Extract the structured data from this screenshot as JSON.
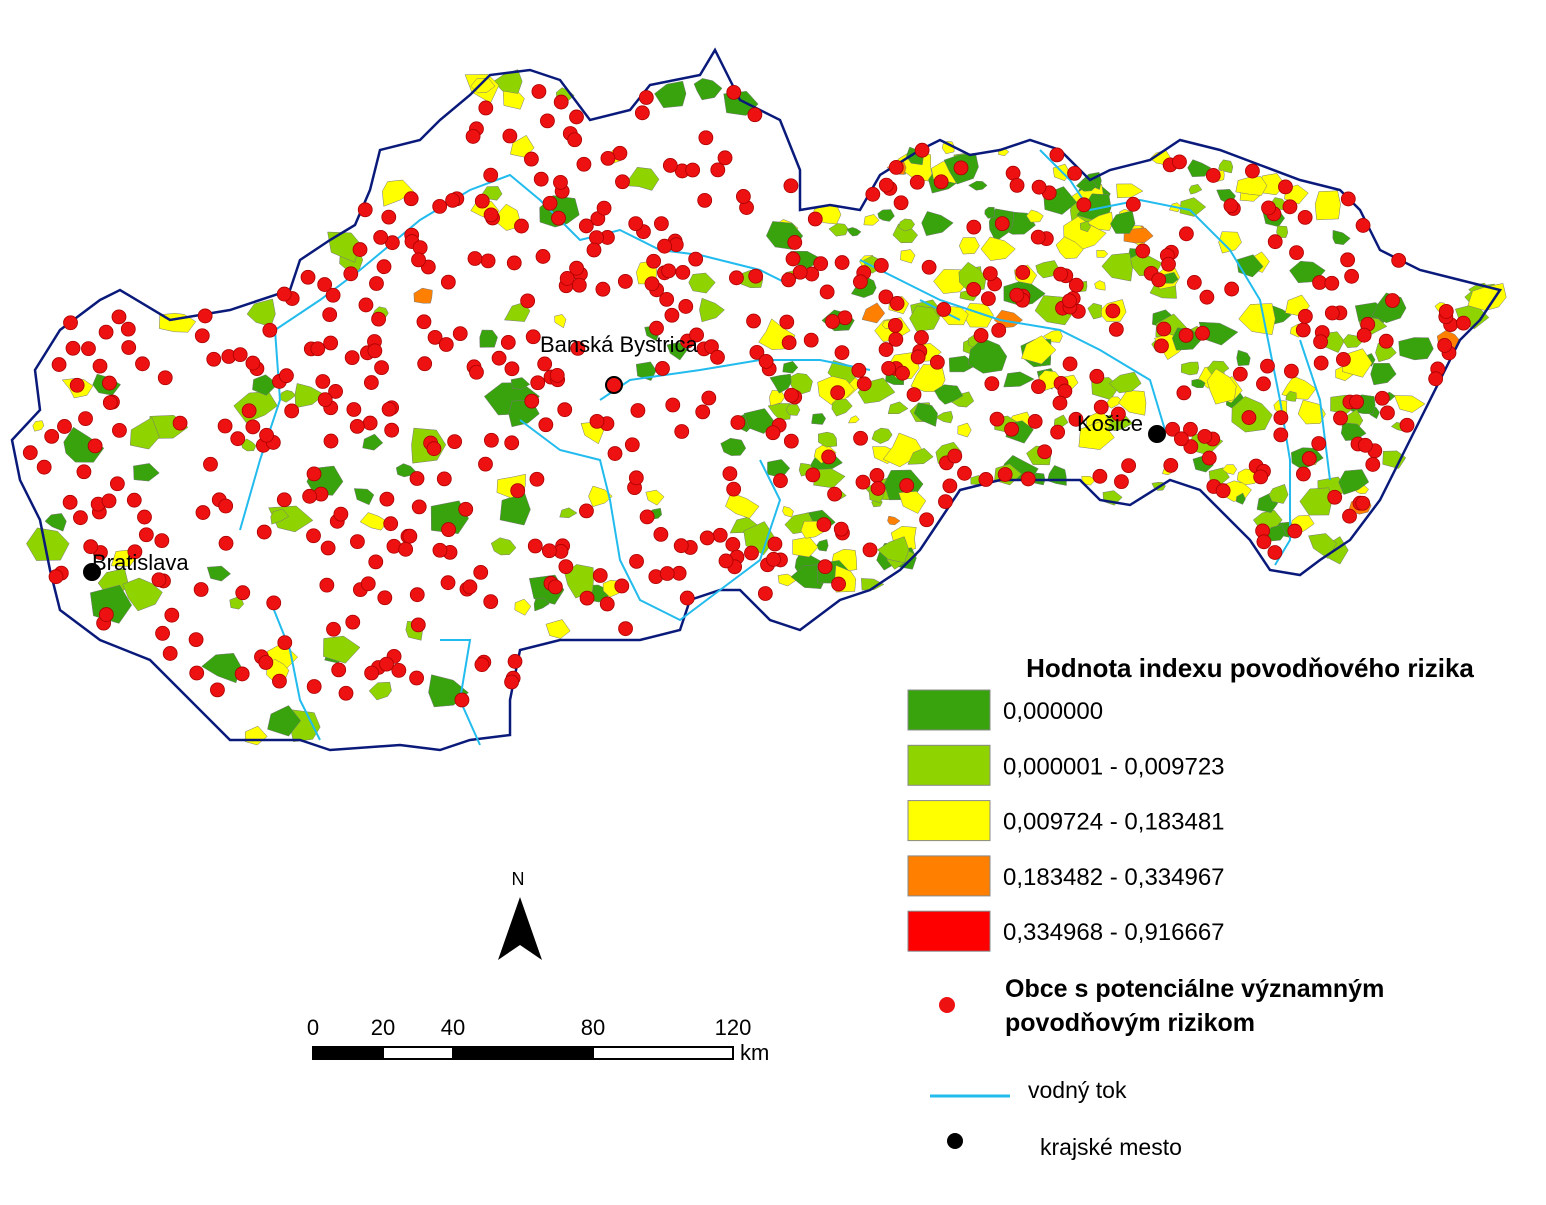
{
  "map": {
    "cities": [
      {
        "name": "Bratislava"
      },
      {
        "name": "Banská Bystrica"
      },
      {
        "name": "Košice"
      }
    ],
    "legend": {
      "title": "Hodnota indexu povodňového rizika",
      "classes": [
        {
          "label": "0,000000",
          "color": "#38a30c"
        },
        {
          "label": "0,000001 - 0,009723",
          "color": "#8fd400"
        },
        {
          "label": "0,009724 - 0,183481",
          "color": "#ffff00"
        },
        {
          "label": "0,183482 - 0,334967",
          "color": "#ff8000"
        },
        {
          "label": "0,334968 - 0,916667",
          "color": "#ff0000"
        }
      ],
      "points": {
        "label_line1": "Obce s potenciálne významným",
        "label_line2": "povodňovým rizikom",
        "color": "#ee1111"
      },
      "river": {
        "label": "vodný tok",
        "color": "#22bbee"
      },
      "city": {
        "label": "krajské mesto"
      }
    },
    "north_arrow": {
      "label": "N"
    },
    "scale_bar": {
      "ticks": [
        0,
        20,
        40,
        80,
        120
      ],
      "unit": "km"
    }
  }
}
